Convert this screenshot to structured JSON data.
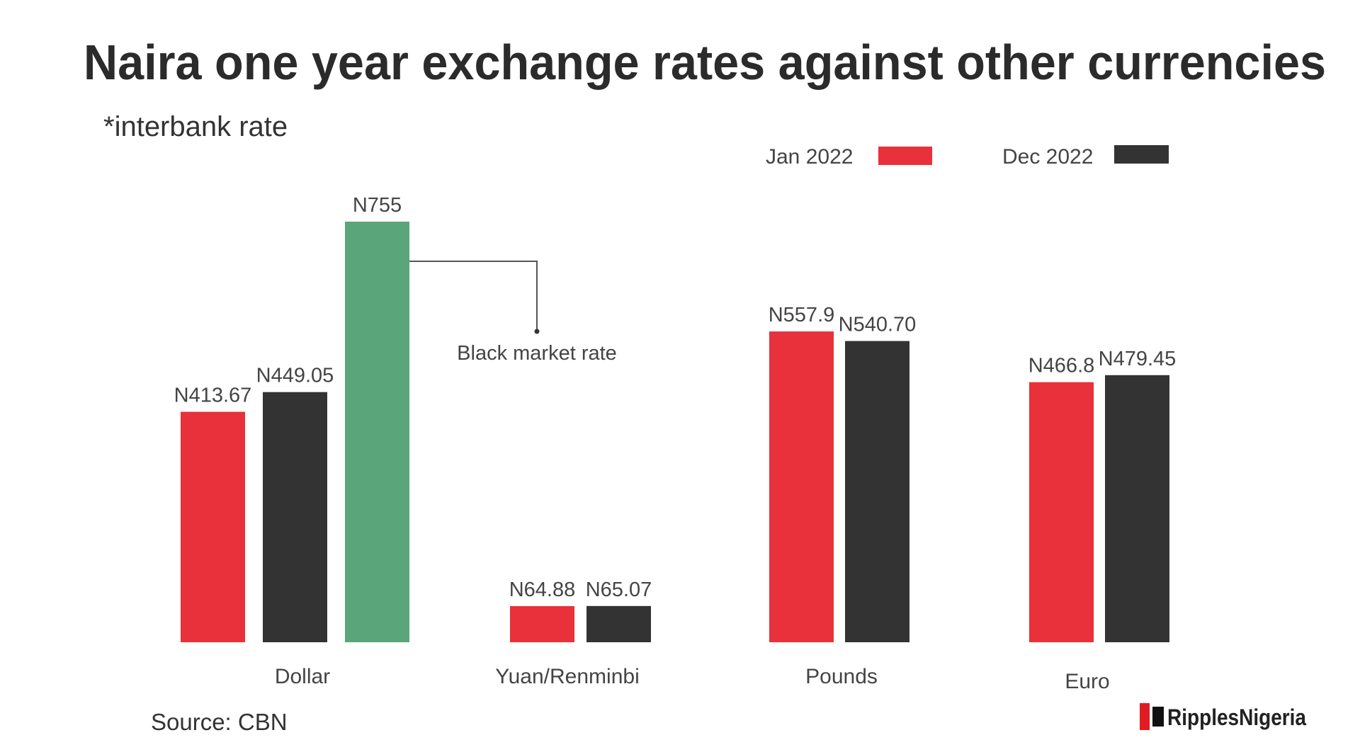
{
  "chart_data": {
    "type": "bar",
    "title": "Naira one year exchange rates against other currencies",
    "subtitle": "*interbank rate",
    "source": "Source: CBN",
    "brand": "RipplesNigeria",
    "categories": [
      "Dollar",
      "Yuan/Renminbi",
      "Pounds",
      "Euro"
    ],
    "series": [
      {
        "name": "Jan 2022",
        "color": "#e8313a",
        "values": [
          413.67,
          64.88,
          557.9,
          466.8
        ],
        "labels": [
          "N413.67",
          "N64.88",
          "N557.9",
          "N466.8"
        ]
      },
      {
        "name": "Dec 2022",
        "color": "#333333",
        "values": [
          449.05,
          65.07,
          540.7,
          479.45
        ],
        "labels": [
          "N449.05",
          "N65.07",
          "N540.70",
          "N479.45"
        ]
      }
    ],
    "extra_bar": {
      "category": "Dollar",
      "name": "Black market rate",
      "value": 755,
      "label": "N755",
      "color": "#5aa57a"
    },
    "annotation": "Black market rate",
    "legend_position": "top-right",
    "ylim": [
      0,
      755
    ],
    "grid": false
  }
}
